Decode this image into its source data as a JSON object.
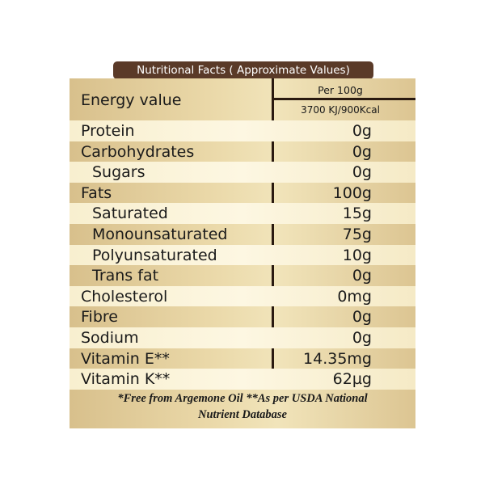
{
  "title": "Nutritional Facts ( Approximate Values)",
  "header": {
    "energy_label": "Energy value",
    "per_label": "Per 100g",
    "energy_value": "3700 KJ/900Kcal"
  },
  "rows": [
    {
      "name": "Protein",
      "value": "0g",
      "indent": false
    },
    {
      "name": "Carbohydrates",
      "value": "0g",
      "indent": false
    },
    {
      "name": "Sugars",
      "value": "0g",
      "indent": true
    },
    {
      "name": "Fats",
      "value": "100g",
      "indent": false
    },
    {
      "name": "Saturated",
      "value": "15g",
      "indent": true
    },
    {
      "name": "Monounsaturated",
      "value": "75g",
      "indent": true
    },
    {
      "name": "Polyunsaturated",
      "value": "10g",
      "indent": true
    },
    {
      "name": "Trans fat",
      "value": "0g",
      "indent": true
    },
    {
      "name": "Cholesterol",
      "value": "0mg",
      "indent": false
    },
    {
      "name": "Fibre",
      "value": "0g",
      "indent": false
    },
    {
      "name": "Sodium",
      "value": "0g",
      "indent": false
    },
    {
      "name": "Vitamin E**",
      "value": "14.35mg",
      "indent": false
    },
    {
      "name": "Vitamin K**",
      "value": "62µg",
      "indent": false
    }
  ],
  "footnote": {
    "line1": "*Free from Argemone Oil   **As per USDA National",
    "line2": "Nutrient Database"
  },
  "colors": {
    "title_bg": "#5a3a28",
    "panel_gold": "#e2cc98",
    "band_light": "#fdf7e2",
    "divider": "#2a1a10"
  }
}
